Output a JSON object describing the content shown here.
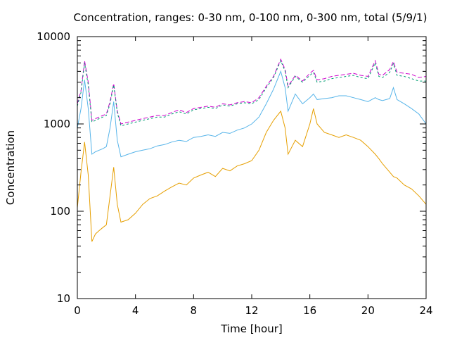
{
  "chart_data": {
    "type": "line",
    "title": "Concentration, ranges: 0-30 nm, 0-100 nm, 0-300 nm, total (5/9/1)",
    "xlabel": "Time [hour]",
    "ylabel": "Concentration",
    "xlim": [
      0,
      24
    ],
    "ylim": [
      10,
      10000
    ],
    "yscale": "log",
    "grid": false,
    "legend": "none",
    "x_ticks": [
      0,
      4,
      8,
      12,
      16,
      20,
      24
    ],
    "x_tick_labels": [
      "0",
      "4",
      "8",
      "12",
      "16",
      "20",
      "24"
    ],
    "y_ticks": [
      10,
      100,
      1000,
      10000
    ],
    "y_tick_labels": [
      "10",
      "100",
      "1000",
      "10000"
    ],
    "x": [
      0,
      0.25,
      0.5,
      0.75,
      1.0,
      1.25,
      1.5,
      1.75,
      2.0,
      2.25,
      2.5,
      2.75,
      3.0,
      3.5,
      4.0,
      4.5,
      5.0,
      5.5,
      6.0,
      6.5,
      7.0,
      7.5,
      8.0,
      8.5,
      9.0,
      9.5,
      10.0,
      10.5,
      11.0,
      11.5,
      12.0,
      12.5,
      13.0,
      13.5,
      14.0,
      14.3,
      14.5,
      15.0,
      15.5,
      16.0,
      16.25,
      16.5,
      17.0,
      17.5,
      18.0,
      18.5,
      19.0,
      19.5,
      20.0,
      20.5,
      20.75,
      21.0,
      21.5,
      21.75,
      22.0,
      22.5,
      23.0,
      23.5,
      24.0
    ],
    "series": [
      {
        "color": "#cc00cc",
        "values": [
          1700,
          2400,
          5300,
          3000,
          1100,
          1150,
          1200,
          1250,
          1300,
          1800,
          2900,
          1400,
          1000,
          1050,
          1100,
          1150,
          1200,
          1250,
          1250,
          1350,
          1450,
          1350,
          1500,
          1550,
          1600,
          1550,
          1700,
          1650,
          1750,
          1800,
          1750,
          2000,
          2700,
          3500,
          5500,
          4200,
          2700,
          3600,
          3100,
          3800,
          4100,
          3200,
          3300,
          3500,
          3600,
          3700,
          3800,
          3600,
          3500,
          5300,
          3700,
          3600,
          4200,
          5200,
          3900,
          3800,
          3700,
          3400,
          3500
        ]
      },
      {
        "color": "#009e73",
        "values": [
          1600,
          2300,
          5000,
          2800,
          1050,
          1100,
          1150,
          1200,
          1250,
          1700,
          2800,
          1350,
          950,
          1000,
          1050,
          1100,
          1150,
          1200,
          1200,
          1300,
          1380,
          1300,
          1450,
          1500,
          1550,
          1500,
          1650,
          1600,
          1700,
          1750,
          1700,
          1900,
          2600,
          3400,
          5300,
          4000,
          2600,
          3500,
          3000,
          3600,
          3900,
          3000,
          3100,
          3300,
          3400,
          3500,
          3600,
          3400,
          3300,
          5000,
          3500,
          3400,
          3900,
          4900,
          3600,
          3500,
          3300,
          3100,
          3100
        ]
      },
      {
        "color": "#56b4e9",
        "values": [
          900,
          1500,
          3200,
          1500,
          450,
          480,
          500,
          520,
          550,
          900,
          1800,
          650,
          420,
          450,
          480,
          500,
          520,
          560,
          580,
          620,
          650,
          630,
          700,
          720,
          750,
          720,
          800,
          780,
          850,
          900,
          1000,
          1200,
          1700,
          2500,
          4000,
          2600,
          1400,
          2200,
          1700,
          2000,
          2200,
          1900,
          1950,
          2000,
          2100,
          2100,
          2000,
          1900,
          1800,
          2000,
          1900,
          1850,
          1950,
          2600,
          1900,
          1700,
          1500,
          1300,
          1000
        ]
      },
      {
        "color": "#e69f00",
        "values": [
          110,
          280,
          620,
          260,
          45,
          55,
          60,
          65,
          70,
          150,
          320,
          120,
          75,
          80,
          95,
          120,
          140,
          150,
          170,
          190,
          210,
          200,
          240,
          260,
          280,
          250,
          310,
          290,
          330,
          350,
          380,
          500,
          800,
          1100,
          1400,
          900,
          450,
          650,
          550,
          1000,
          1500,
          1000,
          800,
          750,
          700,
          750,
          700,
          650,
          550,
          450,
          400,
          350,
          280,
          250,
          240,
          200,
          180,
          150,
          120
        ]
      }
    ]
  }
}
